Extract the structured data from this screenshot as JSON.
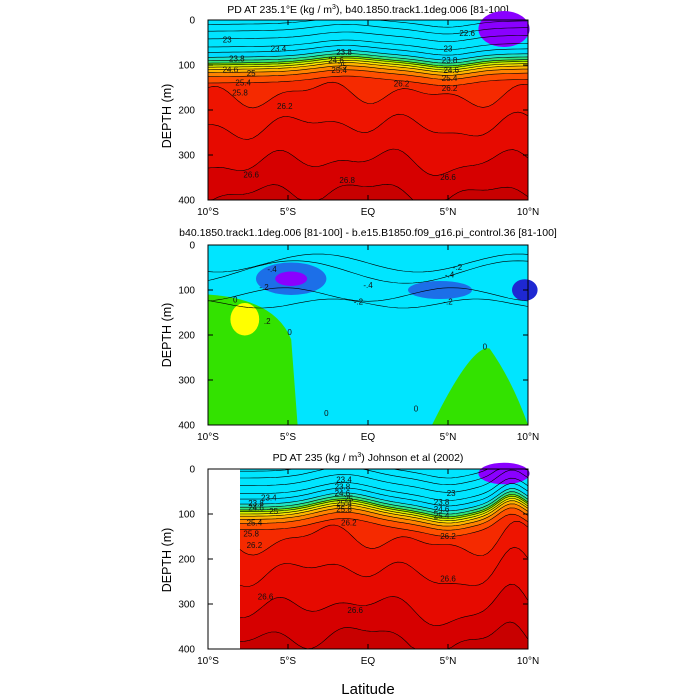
{
  "chart_data": [
    {
      "type": "contour",
      "title": "PD AT 235.1°E (kg / m3), b40.1850.track1.1deg.006 [81-100]",
      "title_parts": [
        "PD AT 235.1°E (kg / m",
        "3",
        "), b40.1850.track1.1deg.006 [81-100]"
      ],
      "ylabel": "DEPTH (m)",
      "x_ticks": [
        "10°S",
        "5°S",
        "EQ",
        "5°N",
        "10°N"
      ],
      "xlim": [
        -10,
        10
      ],
      "y_ticks": [
        "0",
        "100",
        "200",
        "300",
        "400"
      ],
      "ylim": [
        400,
        0
      ],
      "contour_labels": [
        {
          "text": "23",
          "x": -8.8,
          "y": 50
        },
        {
          "text": "23.4",
          "x": -5.6,
          "y": 70
        },
        {
          "text": "23.8",
          "x": -8.2,
          "y": 92
        },
        {
          "text": "24.6",
          "x": -8.6,
          "y": 117
        },
        {
          "text": "25",
          "x": -7.3,
          "y": 124
        },
        {
          "text": "25.4",
          "x": -7.8,
          "y": 146
        },
        {
          "text": "25.8",
          "x": -8.0,
          "y": 168
        },
        {
          "text": "26.2",
          "x": -5.2,
          "y": 198
        },
        {
          "text": "23.8",
          "x": -1.5,
          "y": 78
        },
        {
          "text": "24.6",
          "x": -2.0,
          "y": 96
        },
        {
          "text": "25",
          "x": -1.6,
          "y": 108
        },
        {
          "text": "25.4",
          "x": -1.8,
          "y": 118
        },
        {
          "text": "26.2",
          "x": 2.1,
          "y": 148
        },
        {
          "text": "23",
          "x": 5.0,
          "y": 70
        },
        {
          "text": "23.8",
          "x": 5.1,
          "y": 95
        },
        {
          "text": "24.6",
          "x": 5.2,
          "y": 118
        },
        {
          "text": "25.4",
          "x": 5.1,
          "y": 135
        },
        {
          "text": "26.2",
          "x": 5.1,
          "y": 158
        },
        {
          "text": "22.6",
          "x": 6.2,
          "y": 35
        },
        {
          "text": "26.6",
          "x": -7.3,
          "y": 350
        },
        {
          "text": "26.8",
          "x": -1.3,
          "y": 362
        },
        {
          "text": "26.6",
          "x": 5.0,
          "y": 355
        }
      ]
    },
    {
      "type": "contour",
      "title": "b40.1850.track1.1deg.006 [81-100] - b.e15.B1850.f09_g16.pi_control.36 [81-100]",
      "ylabel": "DEPTH (m)",
      "x_ticks": [
        "10°S",
        "5°S",
        "EQ",
        "5°N",
        "10°N"
      ],
      "xlim": [
        -10,
        10
      ],
      "y_ticks": [
        "0",
        "100",
        "200",
        "300",
        "400"
      ],
      "ylim": [
        400,
        0
      ],
      "contour_labels": [
        {
          "text": "-.4",
          "x": -6.0,
          "y": 60
        },
        {
          "text": "-.2",
          "x": -6.5,
          "y": 100
        },
        {
          "text": "0",
          "x": -8.3,
          "y": 128
        },
        {
          "text": ".2",
          "x": -6.3,
          "y": 175
        },
        {
          "text": "0",
          "x": -4.9,
          "y": 200
        },
        {
          "text": "-.4",
          "x": 0.0,
          "y": 95
        },
        {
          "text": "-.2",
          "x": -0.6,
          "y": 132
        },
        {
          "text": "-.2",
          "x": 5.6,
          "y": 55
        },
        {
          "text": "-.4",
          "x": 5.1,
          "y": 72
        },
        {
          "text": "-.2",
          "x": 5.0,
          "y": 132
        },
        {
          "text": "0",
          "x": 7.3,
          "y": 232
        },
        {
          "text": "0",
          "x": -2.6,
          "y": 380
        },
        {
          "text": "0",
          "x": 3.0,
          "y": 370
        }
      ]
    },
    {
      "type": "contour",
      "title": "PD AT 235 (kg / m3) Johnson et al (2002)",
      "title_parts": [
        "PD AT 235 (kg / m",
        "3",
        ") Johnson et al (2002)"
      ],
      "ylabel": "DEPTH (m)",
      "x_ticks": [
        "10°S",
        "5°S",
        "EQ",
        "5°N",
        "10°N"
      ],
      "xlim": [
        -10,
        10
      ],
      "y_ticks": [
        "0",
        "100",
        "200",
        "300",
        "400"
      ],
      "ylim": [
        400,
        0
      ],
      "data_start_x": -8,
      "contour_labels": [
        {
          "text": "23.4",
          "x": -6.2,
          "y": 70
        },
        {
          "text": "23.8",
          "x": -7.0,
          "y": 82
        },
        {
          "text": "24.6",
          "x": -7.0,
          "y": 92
        },
        {
          "text": "25",
          "x": -5.9,
          "y": 100
        },
        {
          "text": "25.4",
          "x": -7.1,
          "y": 125
        },
        {
          "text": "25.8",
          "x": -7.3,
          "y": 150
        },
        {
          "text": "26.2",
          "x": -7.1,
          "y": 175
        },
        {
          "text": "23.4",
          "x": -1.5,
          "y": 30
        },
        {
          "text": "23.8",
          "x": -1.6,
          "y": 45
        },
        {
          "text": "24.6",
          "x": -1.6,
          "y": 60
        },
        {
          "text": "25",
          "x": -1.2,
          "y": 72
        },
        {
          "text": "25.4",
          "x": -1.5,
          "y": 82
        },
        {
          "text": "25.8",
          "x": -1.5,
          "y": 95
        },
        {
          "text": "26.2",
          "x": -1.2,
          "y": 125
        },
        {
          "text": "23",
          "x": 5.2,
          "y": 60
        },
        {
          "text": "23.8",
          "x": 4.6,
          "y": 80
        },
        {
          "text": "24.6",
          "x": 4.6,
          "y": 95
        },
        {
          "text": "25.4",
          "x": 4.6,
          "y": 110
        },
        {
          "text": "26.2",
          "x": 5.0,
          "y": 155
        },
        {
          "text": "26.6",
          "x": 5.0,
          "y": 250
        },
        {
          "text": "26.6",
          "x": -6.4,
          "y": 290
        },
        {
          "text": "26.6",
          "x": -0.8,
          "y": 320
        }
      ]
    }
  ],
  "figure": {
    "xlabel": "Latitude"
  },
  "colors": {
    "deep_red": "#c80000",
    "red": "#f21a00",
    "orange": "#ff8c00",
    "yellow": "#ffff00",
    "green": "#33e200",
    "cyan": "#00e5ff",
    "blue": "#1c6fe8",
    "navy": "#1e28d2",
    "purple": "#8a00ff",
    "magenta": "#c800e6"
  }
}
